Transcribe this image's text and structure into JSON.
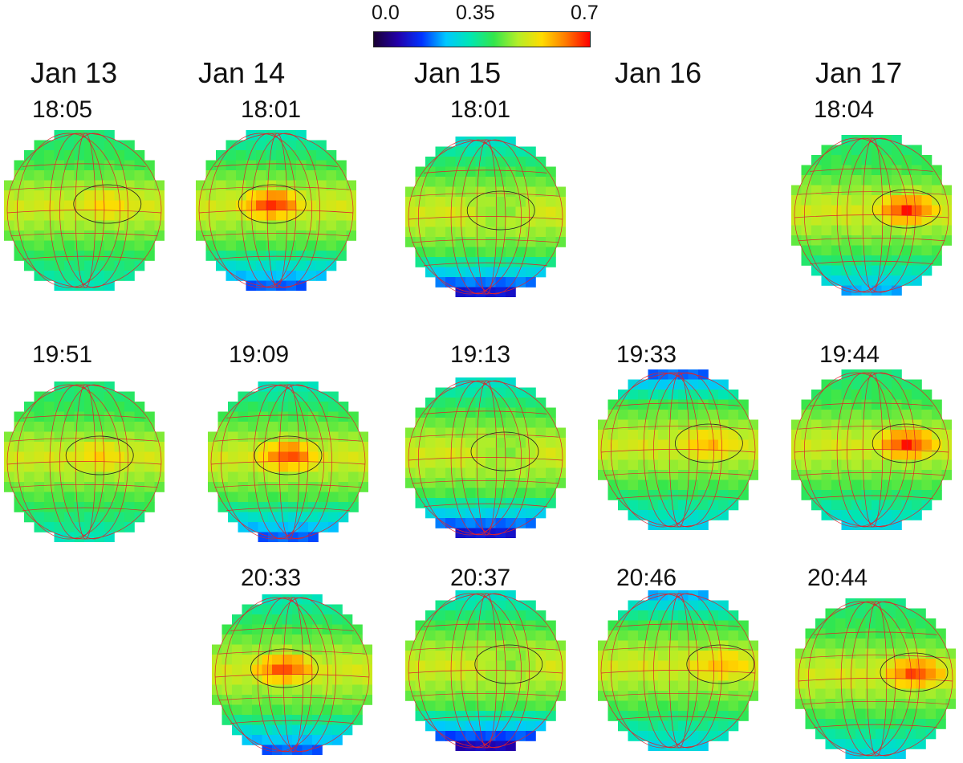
{
  "colorbar": {
    "ticks": [
      "0.0",
      "0.35",
      "0.7"
    ],
    "range": [
      0.0,
      0.7
    ],
    "colors": [
      "#1a0033",
      "#2200aa",
      "#0033ff",
      "#00c8ff",
      "#00e6b4",
      "#33e64c",
      "#b4ee28",
      "#ffdc00",
      "#ff7a00",
      "#ff0000"
    ]
  },
  "days": [
    "Jan 13",
    "Jan 14",
    "Jan 15",
    "Jan 16",
    "Jan 17"
  ],
  "panels": [
    {
      "day": "Jan 13",
      "time": "18:05",
      "row": 0,
      "peak": 0.55,
      "south": 0.3,
      "north": 0.35,
      "hot_x": 0.3
    },
    {
      "day": "Jan 14",
      "time": "18:01",
      "row": 0,
      "peak": 0.7,
      "south": 0.15,
      "north": 0.3,
      "hot_x": -0.05
    },
    {
      "day": "Jan 15",
      "time": "18:01",
      "row": 0,
      "peak": 0.42,
      "south": 0.08,
      "north": 0.28,
      "hot_x": 0.2
    },
    {
      "day": "Jan 17",
      "time": "18:04",
      "row": 0,
      "peak": 0.7,
      "south": 0.2,
      "north": 0.35,
      "hot_x": 0.45
    },
    {
      "day": "Jan 13",
      "time": "19:51",
      "row": 1,
      "peak": 0.55,
      "south": 0.3,
      "north": 0.35,
      "hot_x": 0.2
    },
    {
      "day": "Jan 14",
      "time": "19:09",
      "row": 1,
      "peak": 0.68,
      "south": 0.15,
      "north": 0.3,
      "hot_x": 0.0
    },
    {
      "day": "Jan 15",
      "time": "19:13",
      "row": 1,
      "peak": 0.42,
      "south": 0.08,
      "north": 0.28,
      "hot_x": 0.25
    },
    {
      "day": "Jan 16",
      "time": "19:33",
      "row": 1,
      "peak": 0.58,
      "south": 0.25,
      "north": 0.15,
      "hot_x": 0.4
    },
    {
      "day": "Jan 17",
      "time": "19:44",
      "row": 1,
      "peak": 0.7,
      "south": 0.25,
      "north": 0.35,
      "hot_x": 0.45
    },
    {
      "day": "Jan 14",
      "time": "20:33",
      "row": 2,
      "peak": 0.68,
      "south": 0.15,
      "north": 0.3,
      "hot_x": -0.1
    },
    {
      "day": "Jan 15",
      "time": "20:37",
      "row": 2,
      "peak": 0.42,
      "south": 0.05,
      "north": 0.28,
      "hot_x": 0.3
    },
    {
      "day": "Jan 16",
      "time": "20:46",
      "row": 2,
      "peak": 0.58,
      "south": 0.25,
      "north": 0.2,
      "hot_x": 0.55
    },
    {
      "day": "Jan 17",
      "time": "20:44",
      "row": 2,
      "peak": 0.68,
      "south": 0.25,
      "north": 0.35,
      "hot_x": 0.5
    }
  ]
}
